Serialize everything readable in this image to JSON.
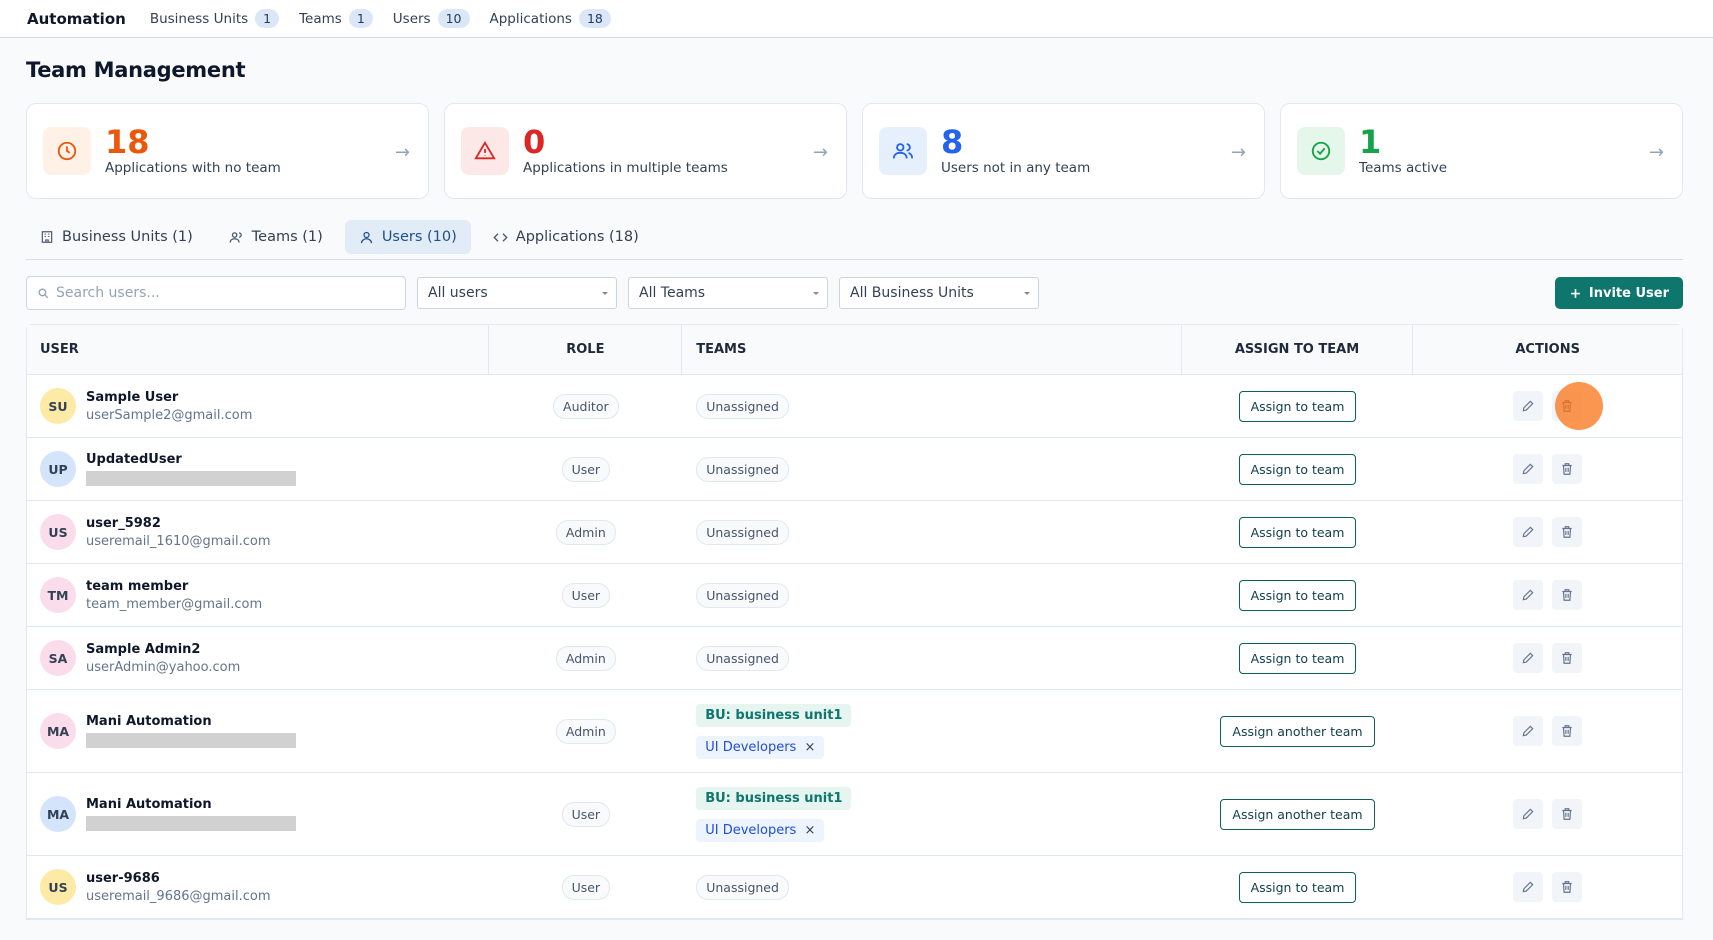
{
  "nav": {
    "brand": "Automation",
    "items": [
      {
        "label": "Business Units",
        "count": 1
      },
      {
        "label": "Teams",
        "count": 1
      },
      {
        "label": "Users",
        "count": 10
      },
      {
        "label": "Applications",
        "count": 18
      }
    ]
  },
  "header": {
    "title": "Team Management"
  },
  "stats": [
    {
      "value": 18,
      "label": "Applications with no team",
      "color": "#ea580c",
      "bg": "#fff1e6"
    },
    {
      "value": 0,
      "label": "Applications in multiple teams",
      "color": "#dc2626",
      "bg": "#fde8e8"
    },
    {
      "value": 8,
      "label": "Users not in any team",
      "color": "#2563eb",
      "bg": "#e6effc"
    },
    {
      "value": 1,
      "label": "Teams active",
      "color": "#16a34a",
      "bg": "#e5f6ea"
    }
  ],
  "tabs": [
    "Business Units (1)",
    "Teams (1)",
    "Users (10)",
    "Applications (18)"
  ],
  "filters": {
    "search": "Search users...",
    "selects": [
      "All users",
      "All Teams",
      "All Business Units"
    ],
    "invite": "Invite User"
  },
  "table": {
    "columns": [
      "USER",
      "ROLE",
      "TEAMS",
      "ASSIGN TO TEAM",
      "ACTIONS"
    ],
    "rows": [
      {
        "initials": "SU",
        "avatar_color": "#fdeaa7",
        "name": "Sample User",
        "email": "userSample2@gmail.com",
        "role": "Auditor",
        "status": "Unassigned",
        "action": "Assign to team"
      },
      {
        "initials": "UP",
        "avatar_color": "#d4e4fb",
        "name": "UpdatedUser",
        "role": "User",
        "status": "Unassigned",
        "action": "Assign to team"
      },
      {
        "initials": "US",
        "avatar_color": "#fbdcea",
        "name": "user_5982",
        "email": "useremail_1610@gmail.com",
        "role": "Admin",
        "status": "Unassigned",
        "action": "Assign to team"
      },
      {
        "initials": "TM",
        "avatar_color": "#fbdcea",
        "name": "team member",
        "email": "team_member@gmail.com",
        "role": "User",
        "status": "Unassigned",
        "action": "Assign to team"
      },
      {
        "initials": "SA",
        "avatar_color": "#fbdcea",
        "name": "Sample Admin2",
        "email": "userAdmin@yahoo.com",
        "role": "Admin",
        "status": "Unassigned",
        "action": "Assign to team"
      },
      {
        "initials": "MA",
        "avatar_color": "#fbdcea",
        "name": "Mani Automation",
        "role": "Admin",
        "business_unit": "BU: business unit1",
        "team": "UI Developers",
        "action": "Assign another team"
      },
      {
        "initials": "MA",
        "avatar_color": "#d4e4fb",
        "name": "Mani Automation",
        "role": "User",
        "business_unit": "BU: business unit1",
        "team": "UI Developers",
        "action": "Assign another team"
      },
      {
        "initials": "US",
        "avatar_color": "#fdeaa7",
        "name": "user-9686",
        "email": "useremail_9686@gmail.com",
        "role": "User",
        "status": "Unassigned",
        "action": "Assign to team"
      }
    ]
  }
}
